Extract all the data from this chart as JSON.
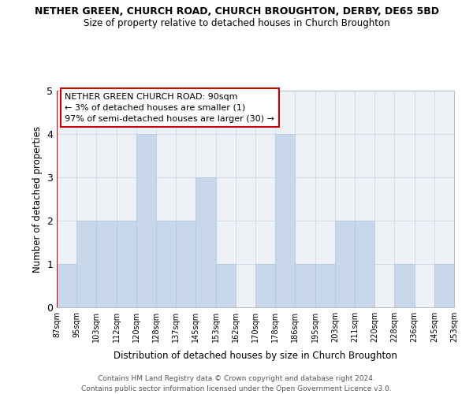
{
  "title_line1": "NETHER GREEN, CHURCH ROAD, CHURCH BROUGHTON, DERBY, DE65 5BD",
  "title_line2": "Size of property relative to detached houses in Church Broughton",
  "xlabel": "Distribution of detached houses by size in Church Broughton",
  "ylabel": "Number of detached properties",
  "bin_labels": [
    "87sqm",
    "95sqm",
    "103sqm",
    "112sqm",
    "120sqm",
    "128sqm",
    "137sqm",
    "145sqm",
    "153sqm",
    "162sqm",
    "170sqm",
    "178sqm",
    "186sqm",
    "195sqm",
    "203sqm",
    "211sqm",
    "220sqm",
    "228sqm",
    "236sqm",
    "245sqm",
    "253sqm"
  ],
  "bar_heights": [
    1,
    2,
    2,
    2,
    4,
    2,
    2,
    3,
    1,
    0,
    1,
    4,
    1,
    1,
    2,
    2,
    0,
    1,
    0,
    1
  ],
  "bar_color": "#c8d8ea",
  "bar_edge_color": "#b0c8dc",
  "annotation_line1": "NETHER GREEN CHURCH ROAD: 90sqm",
  "annotation_line2": "← 3% of detached houses are smaller (1)",
  "annotation_line3": "97% of semi-detached houses are larger (30) →",
  "annotation_box_color": "#ffffff",
  "annotation_box_edge_color": "#cc0000",
  "ylim": [
    0,
    5
  ],
  "yticks": [
    0,
    1,
    2,
    3,
    4,
    5
  ],
  "grid_color": "#d0dce8",
  "background_color": "#eef2f7",
  "footer_line1": "Contains HM Land Registry data © Crown copyright and database right 2024.",
  "footer_line2": "Contains public sector information licensed under the Open Government Licence v3.0.",
  "subject_bar_color": "#cc0000"
}
